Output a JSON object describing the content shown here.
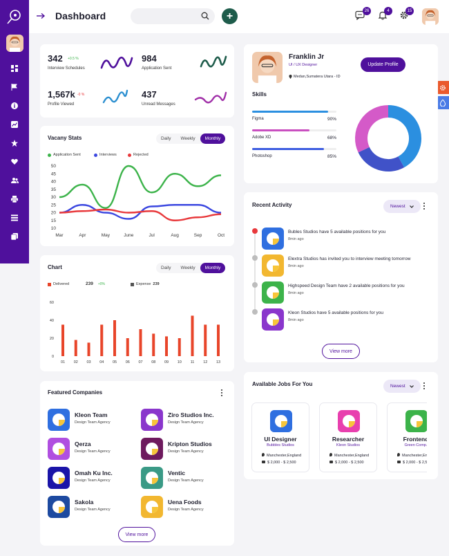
{
  "header": {
    "title": "Dashboard",
    "search_placeholder": "",
    "messages_count": "26",
    "notifications_count": "4",
    "settings_count": "15"
  },
  "stats": [
    {
      "value": "342",
      "change": "+0.5 %",
      "label": "Interview Schedules"
    },
    {
      "value": "984",
      "change": "",
      "label": "Application Sent"
    },
    {
      "value": "1,567k",
      "change": "-0 %",
      "label": "Profile Viewed"
    },
    {
      "value": "437",
      "change": "",
      "label": "Unread Messages"
    }
  ],
  "vacancy": {
    "title": "Vacany Stats",
    "tabs": [
      "Daily",
      "Weekly",
      "Monthly"
    ],
    "legend": [
      "Application Sent",
      "Interviews",
      "Rejected"
    ],
    "chart_data": {
      "type": "line",
      "x": [
        "Mar",
        "Apr",
        "May",
        "June",
        "Jul",
        "Aug",
        "Sep",
        "Oct"
      ],
      "ylim": [
        10,
        50
      ],
      "yticks": [
        50,
        45,
        40,
        35,
        30,
        25,
        20,
        15,
        10
      ],
      "series": [
        {
          "name": "Application Sent",
          "color": "#3cb34a",
          "values": [
            30,
            38,
            23,
            50,
            33,
            45,
            37,
            44
          ]
        },
        {
          "name": "Interviews",
          "color": "#3b47e0",
          "values": [
            20,
            25,
            20,
            16,
            24,
            25,
            25,
            20
          ]
        },
        {
          "name": "Rejected",
          "color": "#e8383b",
          "values": [
            20,
            21,
            22,
            20,
            21,
            15,
            17,
            19
          ]
        }
      ]
    }
  },
  "chart": {
    "title": "Chart",
    "tabs": [
      "Daily",
      "Weekly",
      "Monthly"
    ],
    "delivered_label": "Delivered",
    "delivered_value": "239",
    "delivered_change": "+0%",
    "expense_label": "Expense",
    "expense_value": "239",
    "chart_data": {
      "type": "bar",
      "categories": [
        "01",
        "02",
        "03",
        "04",
        "05",
        "06",
        "07",
        "08",
        "09",
        "10",
        "11",
        "12",
        "13"
      ],
      "values": [
        35,
        18,
        15,
        35,
        40,
        20,
        30,
        25,
        22,
        20,
        45,
        35,
        35
      ],
      "ylim": [
        0,
        60
      ],
      "yticks": [
        60,
        40,
        20,
        0
      ],
      "color": "#e8452a"
    }
  },
  "companies": {
    "title": "Featured Companies",
    "view_more": "View more",
    "items": [
      {
        "name": "Kleon Team",
        "sub": "Design Team Agency",
        "color": "#2f6fe0"
      },
      {
        "name": "Ziro Studios Inc.",
        "sub": "Design Team Agency",
        "color": "#8a36cc"
      },
      {
        "name": "Qerza",
        "sub": "Design Team Agency",
        "color": "#b04fe0"
      },
      {
        "name": "Kripton Studios",
        "sub": "Design Team Agency",
        "color": "#6e1a5e"
      },
      {
        "name": "Omah Ku Inc.",
        "sub": "Design Team Agency",
        "color": "#1a14a8"
      },
      {
        "name": "Ventic",
        "sub": "Design Team Agency",
        "color": "#3a9a86"
      },
      {
        "name": "Sakola",
        "sub": "Design Team Agency",
        "color": "#1d4aa0"
      },
      {
        "name": "Uena Foods",
        "sub": "Design Team Agency",
        "color": "#f2b730"
      }
    ]
  },
  "profile": {
    "name": "Franklin Jr",
    "role": "UI / UX Designer",
    "location": "Medan,Sumatera Utara - ID",
    "update_btn": "Update Profile",
    "skills_title": "Skills",
    "skills": [
      {
        "name": "Figma",
        "pct": "90%",
        "value": 90,
        "color": "#2b8fe0"
      },
      {
        "name": "Adobe XD",
        "pct": "68%",
        "value": 68,
        "color": "#c94fc0"
      },
      {
        "name": "Photoshop",
        "pct": "85%",
        "value": 85,
        "color": "#3b5be0"
      }
    ],
    "donut": [
      {
        "value": 42,
        "color": "#2b8fe0"
      },
      {
        "value": 26,
        "color": "#4052c8"
      },
      {
        "value": 32,
        "color": "#d45ac8"
      }
    ]
  },
  "activity": {
    "title": "Recent Activity",
    "filter": "Newest",
    "view_more": "View more",
    "items": [
      {
        "text": "Bubles Studios have 5 available positions for you",
        "time": "8min ago",
        "color": "#2f6fe0",
        "dot": "#e8383b"
      },
      {
        "text": "Elextra Studios has invited you to interview meeting tomorrow",
        "time": "8min ago",
        "color": "#f2b730",
        "dot": "#bdbdbd"
      },
      {
        "text": "Highspeed Design Team have 2 available positions for you",
        "time": "8min ago",
        "color": "#3cb34a",
        "dot": "#bdbdbd"
      },
      {
        "text": "Kleon Studios have 5 available positions for you",
        "time": "8min ago",
        "color": "#8a36cc",
        "dot": "#bdbdbd"
      }
    ]
  },
  "jobs": {
    "title": "Available Jobs For You",
    "filter": "Newest",
    "items": [
      {
        "title": "UI Designer",
        "company": "Bubbles Studios",
        "location": "Manchester,England",
        "salary": "$ 2,000 - $ 2,500",
        "color": "#2f6fe0"
      },
      {
        "title": "Researcher",
        "company": "Kleon Studios",
        "location": "Manchester,England",
        "salary": "$ 2,000 - $ 2,500",
        "color": "#e83fae"
      },
      {
        "title": "Frontend",
        "company": "Green Comp.",
        "location": "Manchester,Eng",
        "salary": "$ 2,000 - $ 2,5",
        "color": "#3cb34a"
      }
    ]
  }
}
